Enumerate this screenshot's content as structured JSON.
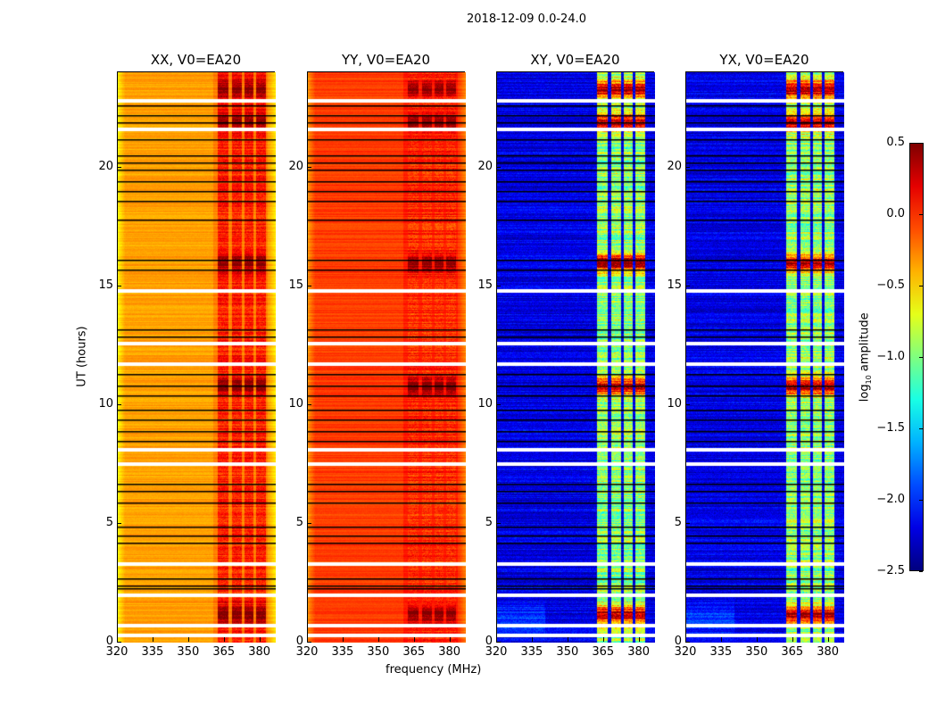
{
  "chart_data": {
    "type": "heatmap",
    "title": "2018-12-09 0.0-24.0",
    "xlabel": "frequency (MHz)",
    "ylabel": "UT (hours)",
    "xlim": [
      320,
      386.5
    ],
    "ylim": [
      0,
      24
    ],
    "xticks": [
      "320",
      "335",
      "350",
      "365",
      "380"
    ],
    "xtick_values": [
      320,
      335,
      350,
      365,
      380
    ],
    "yticks": [
      "0",
      "5",
      "10",
      "15",
      "20"
    ],
    "ytick_values": [
      0,
      5,
      10,
      15,
      20
    ],
    "colormap": "jet",
    "colorbar": {
      "label_prefix": "log",
      "label_sub": "10",
      "label_suffix": " amplitude",
      "range": [
        -2.5,
        0.5
      ],
      "ticks": [
        "0.5",
        "0.0",
        "−0.5",
        "−1.0",
        "−1.5",
        "−2.0",
        "−2.5"
      ],
      "tick_values": [
        0.5,
        0.0,
        -0.5,
        -1.0,
        -1.5,
        -2.0,
        -2.5
      ]
    },
    "rfi_bands_mhz": [
      [
        362,
        366.5
      ],
      [
        368,
        372
      ],
      [
        373.2,
        377
      ],
      [
        378,
        382
      ]
    ],
    "bright_hours": [
      1.2,
      10.8,
      16.0,
      21.9,
      23.3
    ],
    "flagged_hours_white": [
      0.3,
      0.7,
      2.0,
      3.3,
      7.5,
      8.1,
      11.7,
      12.6,
      14.8,
      21.6,
      22.8
    ],
    "flagged_hours_black": [
      0.75,
      2.3,
      2.4,
      2.7,
      4.2,
      4.5,
      4.9,
      5.9,
      6.4,
      6.7,
      8.5,
      8.9,
      9.4,
      9.8,
      10.4,
      10.8,
      11.3,
      12.9,
      13.2,
      15.7,
      16.1,
      17.8,
      18.6,
      19.0,
      19.4,
      19.9,
      20.2,
      20.5,
      21.2,
      21.9,
      22.2,
      22.6
    ],
    "panels": [
      {
        "title": "XX, V0=EA20",
        "baseline_log_amp": -0.35,
        "band_log_amp": 0.05,
        "peak_log_amp": 0.5
      },
      {
        "title": "YY, V0=EA20",
        "baseline_log_amp": -0.05,
        "band_log_amp": 0.0,
        "peak_log_amp": 0.5
      },
      {
        "title": "XY, V0=EA20",
        "baseline_log_amp": -2.2,
        "band_log_amp": -0.95,
        "peak_log_amp": 0.4
      },
      {
        "title": "YX, V0=EA20",
        "baseline_log_amp": -2.2,
        "band_log_amp": -0.95,
        "peak_log_amp": 0.4
      }
    ]
  }
}
